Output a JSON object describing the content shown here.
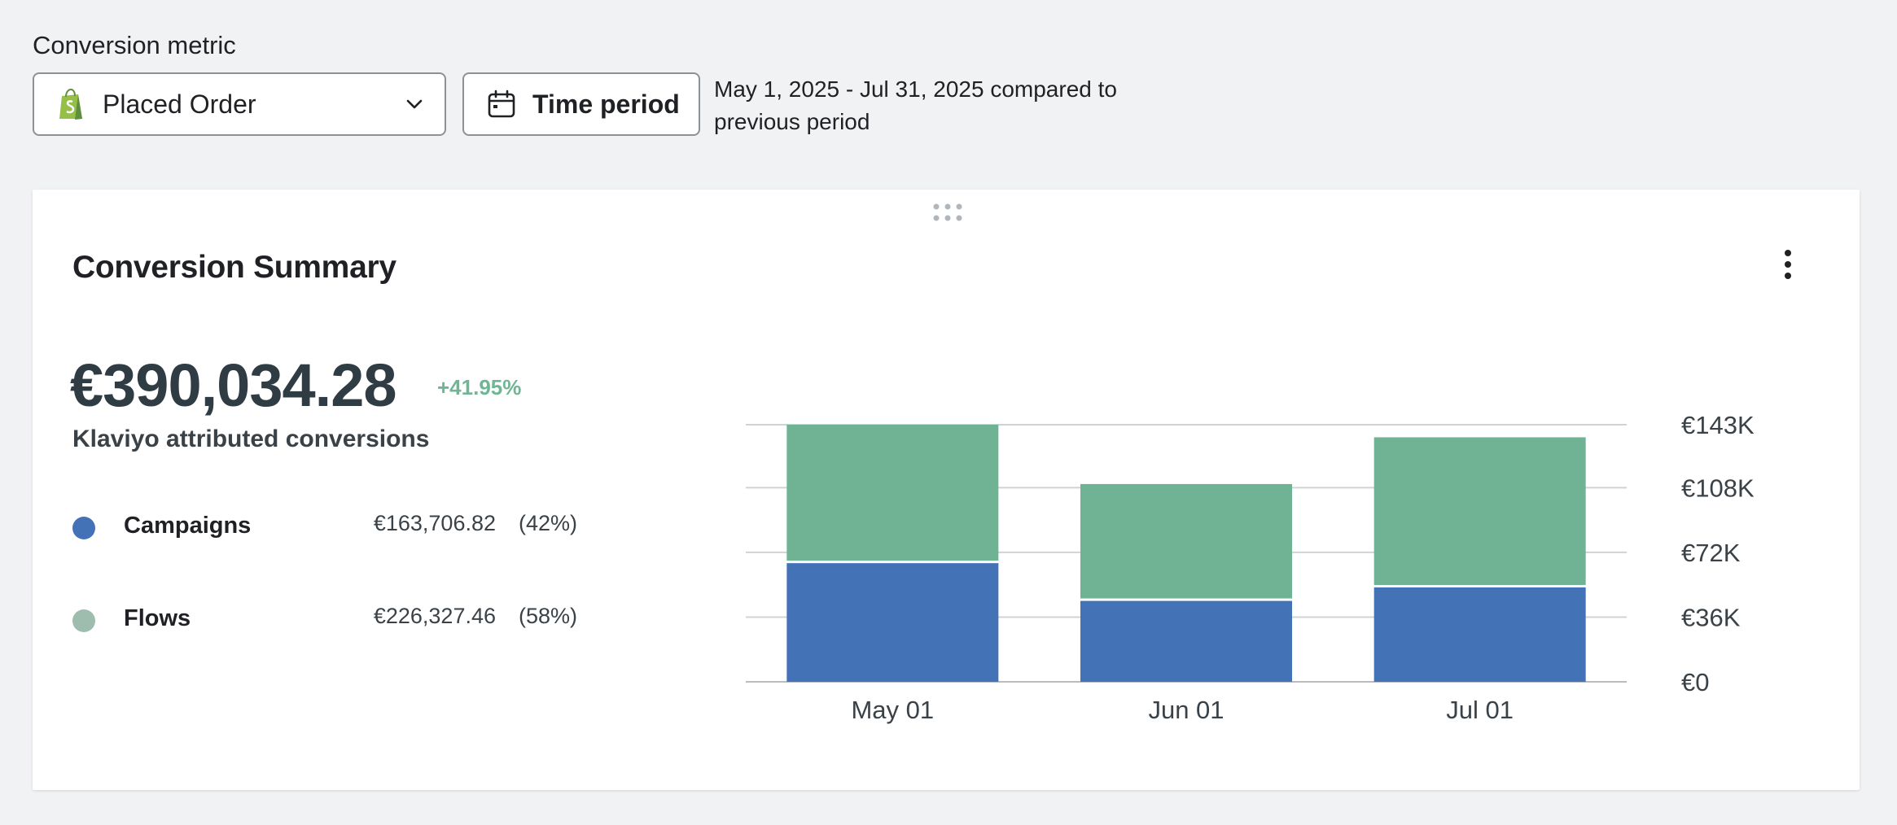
{
  "filters": {
    "metric_label": "Conversion metric",
    "metric_value": "Placed Order",
    "metric_icon": "shopify-bag-icon",
    "time_button_label": "Time period",
    "period_description": "May 1, 2025 - Jul 31, 2025 compared to previous period"
  },
  "card": {
    "title": "Conversion Summary",
    "total_value": "€390,034.28",
    "change": "+41.95%",
    "total_caption": "Klaviyo attributed conversions",
    "legend": [
      {
        "name": "Campaigns",
        "amount": "€163,706.82",
        "pct": "(42%)",
        "color": "#4472b7"
      },
      {
        "name": "Flows",
        "amount": "€226,327.46",
        "pct": "(58%)",
        "color": "#9ebdaf"
      }
    ]
  },
  "colors": {
    "campaigns": "#4472b7",
    "flows": "#70b394",
    "change_positive": "#6fb694",
    "gridline": "#d0d3d6"
  },
  "chart_data": {
    "type": "bar",
    "stacked": true,
    "categories": [
      "May 01",
      "Jun 01",
      "Jul 01"
    ],
    "series": [
      {
        "name": "Campaigns",
        "values": [
          66000,
          45000,
          52500
        ]
      },
      {
        "name": "Flows",
        "values": [
          77000,
          65000,
          83500
        ]
      }
    ],
    "y_ticks": [
      "€0",
      "€36K",
      "€72K",
      "€108K",
      "€143K"
    ],
    "y_tick_values": [
      0,
      36000,
      72000,
      108000,
      143000
    ],
    "ylim": [
      0,
      143000
    ],
    "y_axis_position": "right",
    "grid": true
  }
}
